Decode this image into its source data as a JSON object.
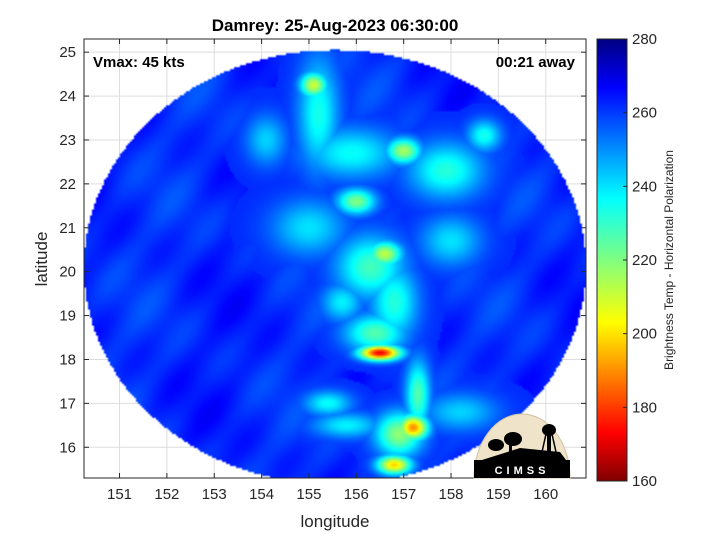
{
  "chart_data": {
    "type": "heatmap",
    "title": "Damrey: 25-Aug-2023 06:30:00",
    "xlabel": "longitude",
    "ylabel": "latitude",
    "xlim": [
      150.25,
      160.85
    ],
    "ylim": [
      15.3,
      25.3
    ],
    "xticks": [
      151,
      152,
      153,
      154,
      155,
      156,
      157,
      158,
      159,
      160
    ],
    "yticks": [
      16,
      17,
      18,
      19,
      20,
      21,
      22,
      23,
      24,
      25
    ],
    "grid": true,
    "annotations": {
      "vmax": "Vmax: 45 kts",
      "away": "00:21 away"
    },
    "swath": {
      "center_lon": 155.55,
      "center_lat": 20.1,
      "radius_lon": 5.3,
      "radius_lat": 4.95
    },
    "background_value": 262,
    "features": [
      {
        "lon": 156.5,
        "lat": 18.15,
        "value": 172,
        "sx": 0.3,
        "sy": 0.12
      },
      {
        "lon": 156.6,
        "lat": 20.4,
        "value": 212,
        "sx": 0.25,
        "sy": 0.2
      },
      {
        "lon": 157.0,
        "lat": 22.75,
        "value": 215,
        "sx": 0.25,
        "sy": 0.2
      },
      {
        "lon": 155.1,
        "lat": 24.25,
        "value": 210,
        "sx": 0.2,
        "sy": 0.2
      },
      {
        "lon": 157.2,
        "lat": 16.45,
        "value": 190,
        "sx": 0.22,
        "sy": 0.2
      },
      {
        "lon": 156.8,
        "lat": 15.6,
        "value": 198,
        "sx": 0.25,
        "sy": 0.15
      },
      {
        "lon": 156.0,
        "lat": 21.6,
        "value": 220,
        "sx": 0.28,
        "sy": 0.2
      },
      {
        "lon": 156.3,
        "lat": 20.1,
        "value": 228,
        "sx": 0.5,
        "sy": 0.5
      },
      {
        "lon": 156.8,
        "lat": 19.3,
        "value": 232,
        "sx": 0.35,
        "sy": 0.6
      },
      {
        "lon": 156.4,
        "lat": 18.6,
        "value": 226,
        "sx": 0.45,
        "sy": 0.3
      },
      {
        "lon": 157.3,
        "lat": 17.2,
        "value": 226,
        "sx": 0.18,
        "sy": 0.55
      },
      {
        "lon": 156.9,
        "lat": 16.3,
        "value": 218,
        "sx": 0.35,
        "sy": 0.35
      },
      {
        "lon": 155.9,
        "lat": 22.7,
        "value": 236,
        "sx": 0.7,
        "sy": 0.4
      },
      {
        "lon": 157.9,
        "lat": 22.3,
        "value": 232,
        "sx": 0.55,
        "sy": 0.45
      },
      {
        "lon": 155.2,
        "lat": 23.6,
        "value": 234,
        "sx": 0.3,
        "sy": 0.9
      },
      {
        "lon": 158.7,
        "lat": 23.1,
        "value": 234,
        "sx": 0.25,
        "sy": 0.25
      },
      {
        "lon": 155.0,
        "lat": 21.0,
        "value": 240,
        "sx": 0.55,
        "sy": 0.45
      },
      {
        "lon": 155.7,
        "lat": 19.3,
        "value": 238,
        "sx": 0.3,
        "sy": 0.3
      },
      {
        "lon": 154.1,
        "lat": 23.0,
        "value": 242,
        "sx": 0.3,
        "sy": 0.4
      },
      {
        "lon": 155.4,
        "lat": 17.0,
        "value": 236,
        "sx": 0.35,
        "sy": 0.2
      },
      {
        "lon": 155.8,
        "lat": 16.5,
        "value": 238,
        "sx": 0.5,
        "sy": 0.2
      },
      {
        "lon": 158.0,
        "lat": 20.7,
        "value": 240,
        "sx": 0.45,
        "sy": 0.4
      },
      {
        "lon": 158.2,
        "lat": 16.8,
        "value": 242,
        "sx": 0.55,
        "sy": 0.3
      }
    ],
    "colorbar": {
      "label": "Brightness Temp - Horizontal Polarization",
      "range": [
        160,
        280
      ],
      "ticks": [
        160,
        180,
        200,
        220,
        240,
        260,
        280
      ]
    },
    "logo": {
      "text": "CIMSS"
    }
  }
}
